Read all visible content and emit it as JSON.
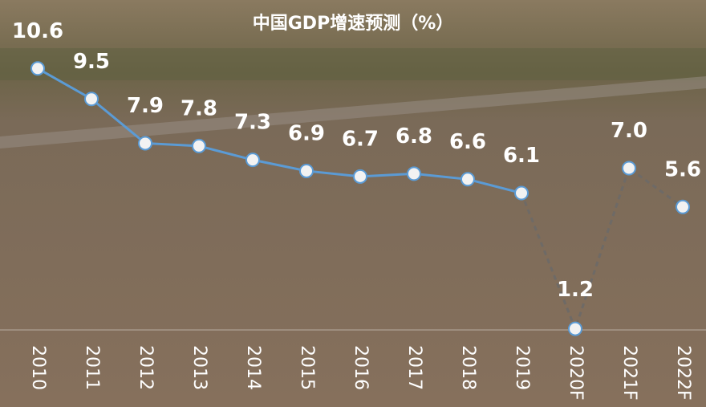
{
  "chart_data": {
    "type": "line",
    "title": "中国GDP增速预测（%）",
    "categories": [
      "2010",
      "2011",
      "2012",
      "2013",
      "2014",
      "2015",
      "2016",
      "2017",
      "2018",
      "2019",
      "2020F",
      "2021F",
      "2022F"
    ],
    "series": [
      {
        "color": "#5b9bd5",
        "dashed": false,
        "values": [
          10.6,
          9.5,
          7.9,
          7.8,
          7.3,
          6.9,
          6.7,
          6.8,
          6.6,
          6.1,
          null,
          null,
          null
        ],
        "value_labels": [
          "10.6",
          "9.5",
          "7.9",
          "7.8",
          "7.3",
          "6.9",
          "6.7",
          "6.8",
          "6.6",
          "6.1",
          null,
          null,
          null
        ]
      },
      {
        "color": "#6e6a66",
        "dashed": true,
        "values": [
          null,
          null,
          null,
          null,
          null,
          null,
          null,
          null,
          null,
          6.1,
          1.2,
          7.0,
          5.6
        ],
        "value_labels": [
          null,
          null,
          null,
          null,
          null,
          null,
          null,
          null,
          null,
          null,
          "1.2",
          "7.0",
          "5.6"
        ]
      }
    ],
    "ylim": [
      0,
      12
    ],
    "grid": false
  }
}
